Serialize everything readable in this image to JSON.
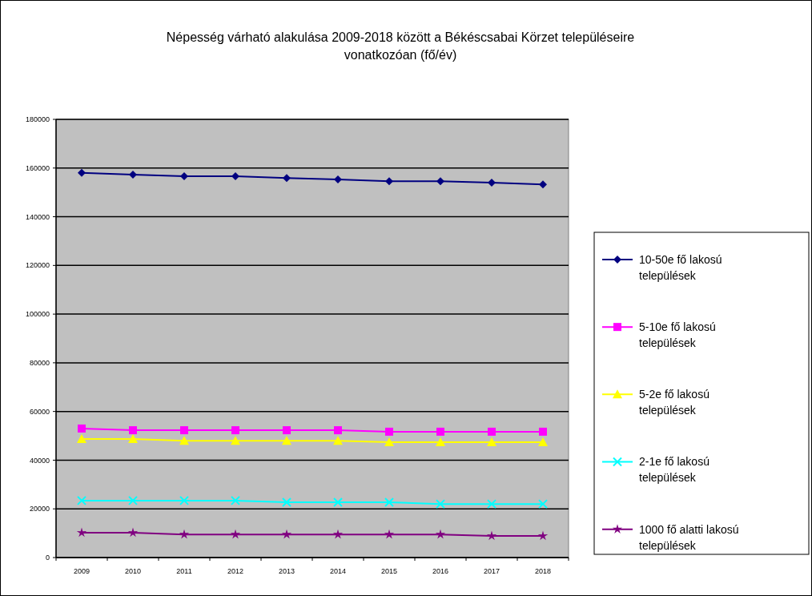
{
  "chart_data": {
    "type": "line",
    "title": "Népesség várható alakulása 2009-2018 között a Békéscsabai Körzet településeire vonatkozóan (fő/év)",
    "categories": [
      "2009",
      "2010",
      "2011",
      "2012",
      "2013",
      "2014",
      "2015",
      "2016",
      "2017",
      "2018"
    ],
    "series": [
      {
        "name": "10-50e fő lakosú települések",
        "color": "#000080",
        "marker": "diamond",
        "values": [
          158000,
          157300,
          156600,
          156600,
          155900,
          155300,
          154600,
          154600,
          154000,
          153300
        ]
      },
      {
        "name": "5-10e fő lakosú települések",
        "color": "#ff00ff",
        "marker": "square",
        "values": [
          53000,
          52300,
          52300,
          52300,
          52300,
          52300,
          51700,
          51700,
          51700,
          51700
        ]
      },
      {
        "name": "5-2e fő lakosú települések",
        "color": "#ffff00",
        "marker": "triangle",
        "values": [
          48700,
          48700,
          48000,
          48000,
          48000,
          48000,
          47400,
          47400,
          47400,
          47400
        ]
      },
      {
        "name": "2-1e fő lakosú települések",
        "color": "#00ffff",
        "marker": "cross",
        "values": [
          23400,
          23400,
          23400,
          23400,
          22700,
          22700,
          22700,
          22000,
          22000,
          22000
        ]
      },
      {
        "name": "1000 fő alatti lakosú települések",
        "color": "#800080",
        "marker": "star",
        "values": [
          10200,
          10200,
          9500,
          9500,
          9500,
          9500,
          9500,
          9500,
          8900,
          8900
        ]
      }
    ],
    "ylim": [
      0,
      180000
    ],
    "yticks": [
      0,
      20000,
      40000,
      60000,
      80000,
      100000,
      120000,
      140000,
      160000,
      180000
    ],
    "grid": "y",
    "legend": "right"
  }
}
